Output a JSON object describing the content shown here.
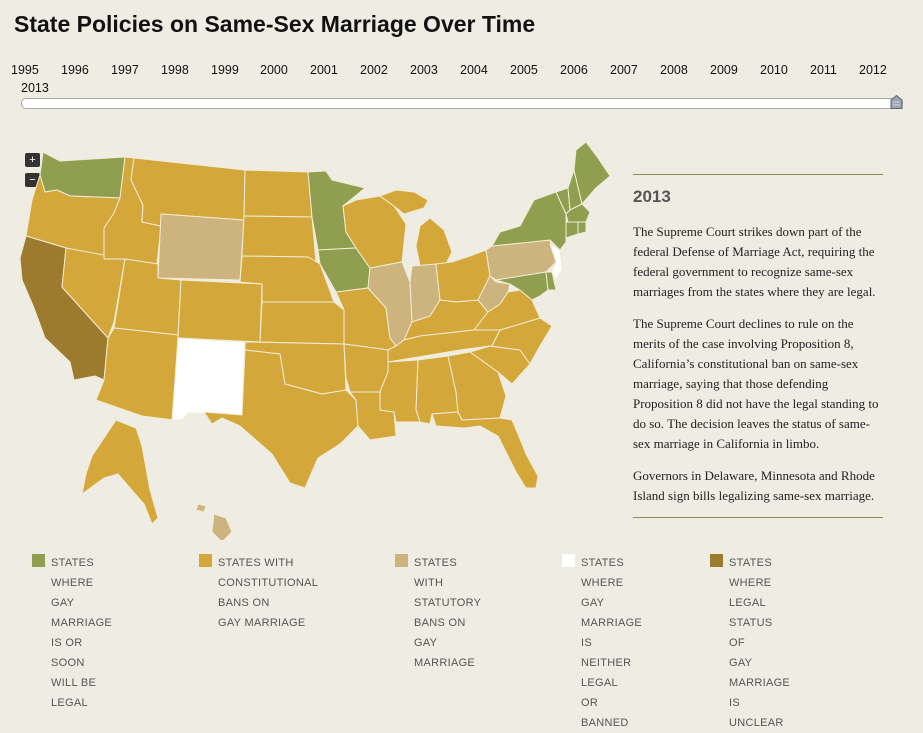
{
  "page": {
    "title": "State Policies on Same-Sex Marriage Over Time"
  },
  "timeline": {
    "years": [
      "1995",
      "1996",
      "1997",
      "1998",
      "1999",
      "2000",
      "2001",
      "2002",
      "2003",
      "2004",
      "2005",
      "2006",
      "2007",
      "2008",
      "2009",
      "2010",
      "2011",
      "2012",
      "2013"
    ],
    "selected_year": "2013"
  },
  "map_controls": {
    "zoom_in": "+",
    "zoom_out": "−"
  },
  "info": {
    "year": "2013",
    "paragraphs": [
      "The Supreme Court strikes down part of the federal Defense of Marriage Act, requiring the federal government to recognize same-sex marriages from the states where they are legal.",
      "The Supreme Court declines to rule on the merits of the case involving Proposition 8, California’s constitutional ban on same-sex marriage, saying that those defending Proposition 8 did not have the legal standing to do so. The decision leaves the status of same-sex marriage in California in limbo.",
      "Governors in Delaware, Minnesota and Rhode Island sign bills legalizing same-sex marriage."
    ]
  },
  "legend": [
    {
      "label": "STATES WHERE\nGAY MARRIAGE IS OR\nSOON WILL BE LEGAL",
      "color": "#8f9e4f"
    },
    {
      "label": "STATES WITH\nCONSTITUTIONAL BANS ON\nGAY MARRIAGE",
      "color": "#d4a73a"
    },
    {
      "label": "STATES WITH\nSTATUTORY BANS ON\nGAY MARRIAGE",
      "color": "#cdb47e"
    },
    {
      "label": "STATES WHERE\nGAY MARRIAGE IS\nNEITHER LEGAL\nOR BANNED",
      "color": "#ffffff"
    },
    {
      "label": "STATES WHERE\nLEGAL STATUS OF\nGAY MARRIAGE IS UNCLEAR",
      "color": "#9c7a2e"
    }
  ],
  "colors": {
    "legal": "#8f9e4f",
    "constitutional_ban": "#d4a73a",
    "statutory_ban": "#cdb47e",
    "neither": "#ffffff",
    "unclear": "#9c7a2e"
  }
}
